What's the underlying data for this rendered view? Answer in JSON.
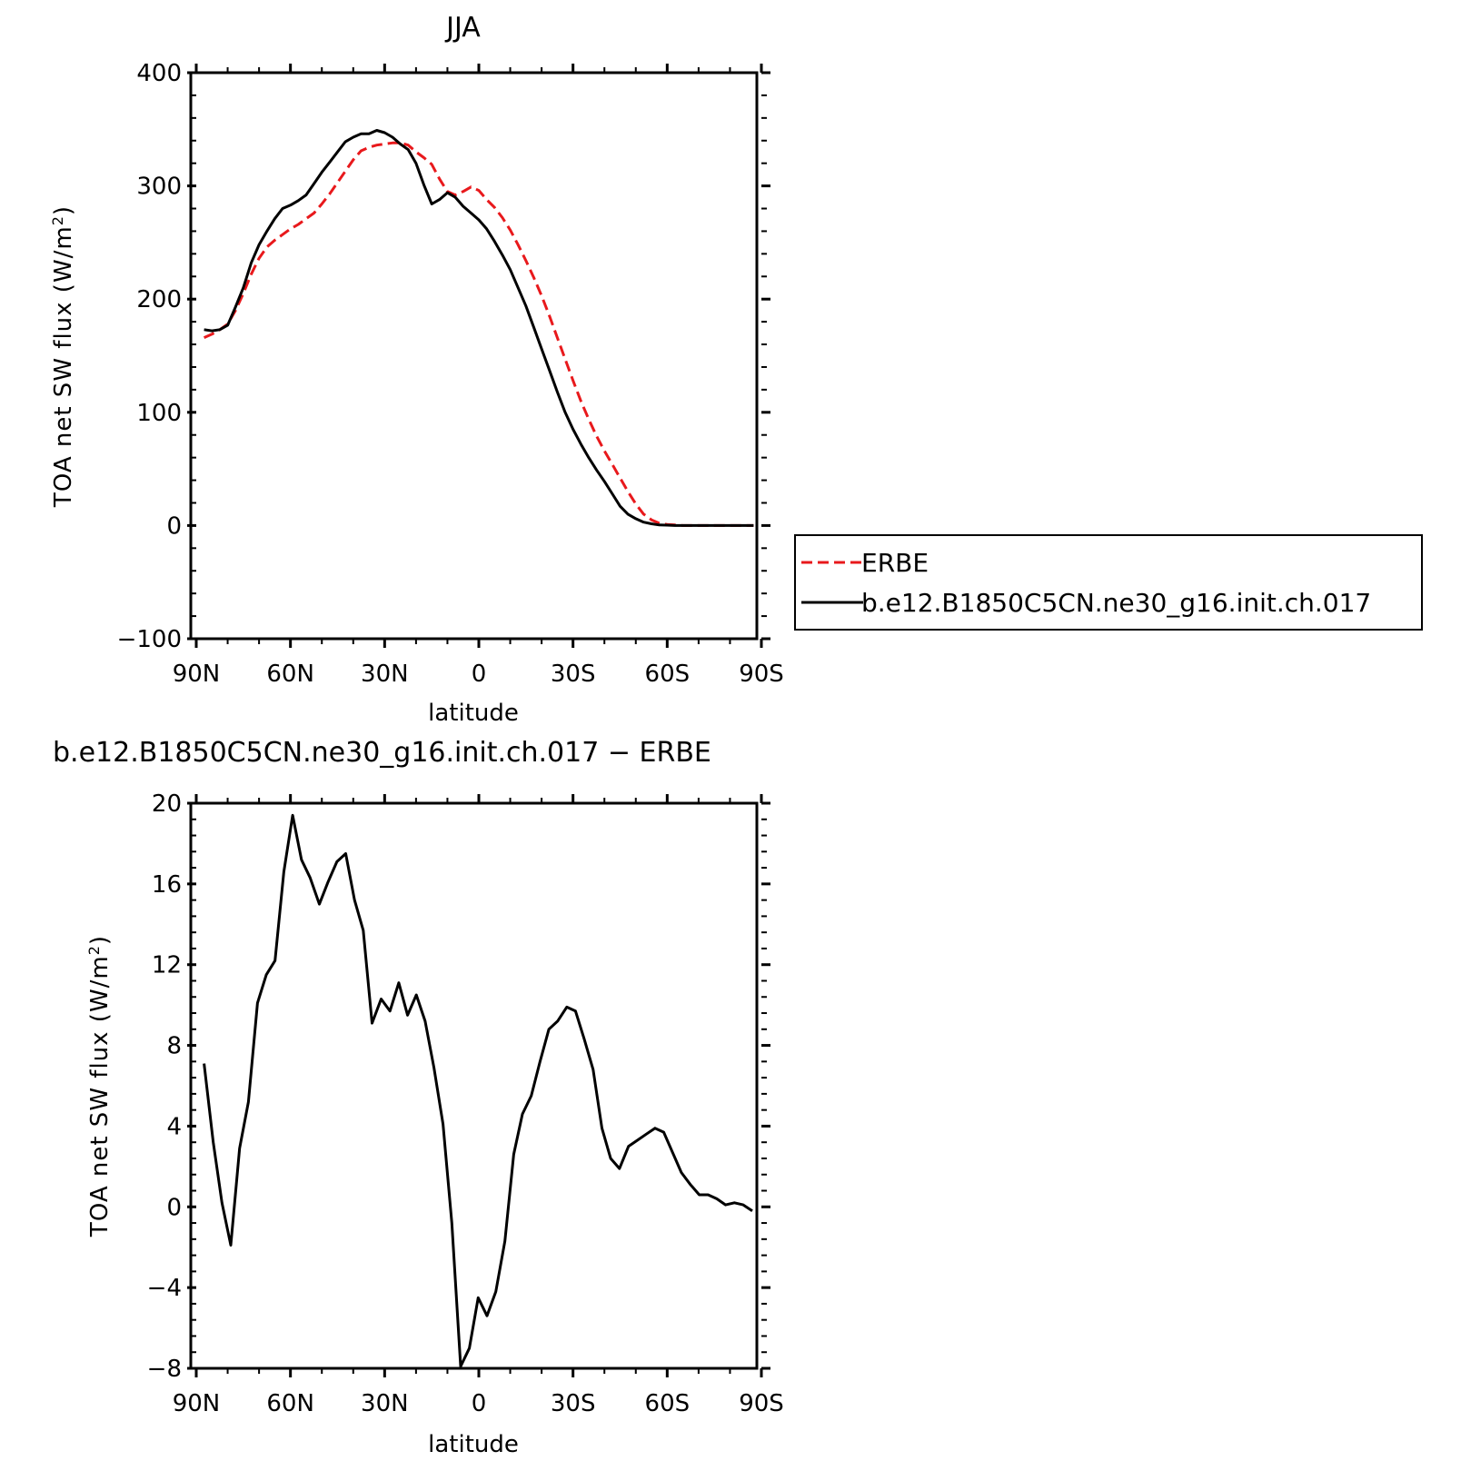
{
  "chart_data": [
    {
      "type": "line",
      "title": "JJA",
      "xlabel": "latitude",
      "ylabel": "TOA net SW flux (W/m",
      "ylabel_sup": "2",
      "ylabel_close": ")",
      "xlim": [
        90,
        -90
      ],
      "ylim": [
        -100,
        400
      ],
      "xticks": [
        90,
        60,
        30,
        0,
        -30,
        -60,
        -90
      ],
      "xtick_labels": [
        "90N",
        "60N",
        "30N",
        "0",
        "30S",
        "60S",
        "90S"
      ],
      "yticks": [
        -100,
        0,
        100,
        200,
        300,
        400
      ],
      "ytick_labels": [
        "−100",
        "0",
        "100",
        "200",
        "300",
        "400"
      ],
      "grid": false,
      "legend_placement": "right, outside plot",
      "series": [
        {
          "name": "ERBE",
          "color": "#e8191c",
          "dash": "dashed",
          "x": [
            87.5,
            85,
            82.5,
            80,
            77.5,
            75,
            72.5,
            70,
            67.5,
            65,
            62.5,
            60,
            57.5,
            55,
            52.5,
            50,
            47.5,
            45,
            42.5,
            40,
            37.5,
            35,
            32.5,
            30,
            27.5,
            25,
            22.5,
            20,
            17.5,
            15,
            12.5,
            10,
            7.5,
            5,
            2.5,
            0,
            -2.5,
            -5,
            -7.5,
            -10,
            -12.5,
            -15,
            -17.5,
            -20,
            -22.5,
            -25,
            -27.5,
            -30,
            -32.5,
            -35,
            -37.5,
            -40,
            -42.5,
            -45,
            -47.5,
            -50,
            -52.5,
            -55,
            -57.5,
            -60,
            -62.5,
            -65,
            -67.5,
            -70,
            -72.5,
            -75,
            -77.5,
            -80,
            -82.5,
            -85,
            -87.5
          ],
          "y": [
            166,
            169,
            173,
            178,
            190,
            205,
            222,
            236,
            246,
            252,
            257,
            262,
            266,
            271,
            276,
            284,
            293,
            303,
            313,
            323,
            331,
            334,
            336,
            337,
            338,
            338,
            336,
            330,
            325,
            319,
            306,
            295,
            292,
            295,
            299,
            296,
            288,
            281,
            272,
            261,
            248,
            234,
            219,
            203,
            185,
            166,
            147,
            128,
            110,
            94,
            79,
            66,
            54,
            42,
            30,
            19,
            10,
            5,
            2,
            1,
            0.5,
            0,
            0,
            0,
            0,
            0,
            0,
            0,
            0,
            0,
            0
          ]
        },
        {
          "name": "b.e12.B1850C5CN.ne30_g16.init.ch.017",
          "color": "#000000",
          "dash": "solid",
          "x": [
            87.5,
            85,
            82.5,
            80,
            77.5,
            75,
            72.5,
            70,
            67.5,
            65,
            62.5,
            60,
            57.5,
            55,
            52.5,
            50,
            47.5,
            45,
            42.5,
            40,
            37.5,
            35,
            32.5,
            30,
            27.5,
            25,
            22.5,
            20,
            17.5,
            15,
            12.5,
            10,
            7.5,
            5,
            2.5,
            0,
            -2.5,
            -5,
            -7.5,
            -10,
            -12.5,
            -15,
            -17.5,
            -20,
            -22.5,
            -25,
            -27.5,
            -30,
            -32.5,
            -35,
            -37.5,
            -40,
            -42.5,
            -45,
            -47.5,
            -50,
            -52.5,
            -55,
            -57.5,
            -60,
            -62.5,
            -65,
            -67.5,
            -70,
            -72.5,
            -75,
            -77.5,
            -80,
            -82.5,
            -85,
            -87.5
          ],
          "y": [
            173,
            172,
            173,
            177,
            193,
            210,
            232,
            248,
            260,
            271,
            280,
            283,
            287,
            292,
            302,
            312,
            321,
            330,
            339,
            343,
            346,
            346,
            349,
            347,
            343,
            337,
            332,
            320,
            301,
            284,
            288,
            294,
            290,
            282,
            276,
            270,
            262,
            251,
            239,
            226,
            210,
            194,
            175,
            156,
            137,
            118,
            100,
            85,
            72,
            60,
            49,
            39,
            28,
            17,
            10,
            6,
            3,
            1.5,
            0.5,
            0.3,
            0,
            0,
            0,
            0,
            0,
            0,
            0,
            0,
            0,
            0,
            0
          ]
        }
      ]
    },
    {
      "type": "line",
      "title": "b.e12.B1850C5CN.ne30_g16.init.ch.017 − ERBE",
      "xlabel": "latitude",
      "ylabel": "TOA net SW flux (W/m",
      "ylabel_sup": "2",
      "ylabel_close": ")",
      "xlim": [
        90,
        -90
      ],
      "ylim": [
        -8,
        20
      ],
      "xticks": [
        90,
        60,
        30,
        0,
        -30,
        -60,
        -90
      ],
      "xtick_labels": [
        "90N",
        "60N",
        "30N",
        "0",
        "30S",
        "60S",
        "90S"
      ],
      "yticks": [
        -8,
        -4,
        0,
        4,
        8,
        12,
        16,
        20
      ],
      "ytick_labels": [
        "−8",
        "−4",
        "0",
        "4",
        "8",
        "12",
        "16",
        "20"
      ],
      "grid": false,
      "series": [
        {
          "color": "#000000",
          "dash": "solid",
          "x": [
            87.5,
            84.6,
            81.8,
            79.0,
            76.2,
            73.4,
            70.5,
            67.7,
            64.9,
            62.1,
            59.3,
            56.5,
            53.7,
            50.8,
            48.0,
            45.2,
            42.4,
            39.6,
            36.8,
            34.0,
            31.1,
            28.3,
            25.5,
            22.7,
            19.9,
            17.1,
            14.3,
            11.4,
            8.6,
            5.8,
            3.0,
            0.2,
            -2.6,
            -5.4,
            -8.3,
            -11.1,
            -13.9,
            -16.7,
            -19.5,
            -22.3,
            -25.1,
            -28.0,
            -30.8,
            -33.6,
            -36.4,
            -39.2,
            -42.0,
            -44.8,
            -47.7,
            -50.5,
            -53.3,
            -56.1,
            -58.9,
            -61.7,
            -64.5,
            -67.4,
            -70.2,
            -73.0,
            -75.8,
            -78.6,
            -81.4,
            -84.2,
            -87.1
          ],
          "y": [
            7.1,
            3.2,
            0.2,
            -1.9,
            2.9,
            5.2,
            10.1,
            11.5,
            12.2,
            16.6,
            19.4,
            17.2,
            16.3,
            15.0,
            16.1,
            17.1,
            17.5,
            15.2,
            13.7,
            9.1,
            10.3,
            9.7,
            11.1,
            9.5,
            10.5,
            9.2,
            6.9,
            4.1,
            -0.8,
            -7.9,
            -7.0,
            -4.5,
            -5.4,
            -4.2,
            -1.7,
            2.6,
            4.6,
            5.5,
            7.2,
            8.8,
            9.2,
            9.9,
            9.7,
            8.3,
            6.8,
            3.9,
            2.4,
            1.9,
            3.0,
            3.3,
            3.6,
            3.9,
            3.7,
            2.7,
            1.7,
            1.1,
            0.6,
            0.6,
            0.4,
            0.1,
            0.2,
            0.1,
            -0.2
          ]
        }
      ]
    }
  ]
}
